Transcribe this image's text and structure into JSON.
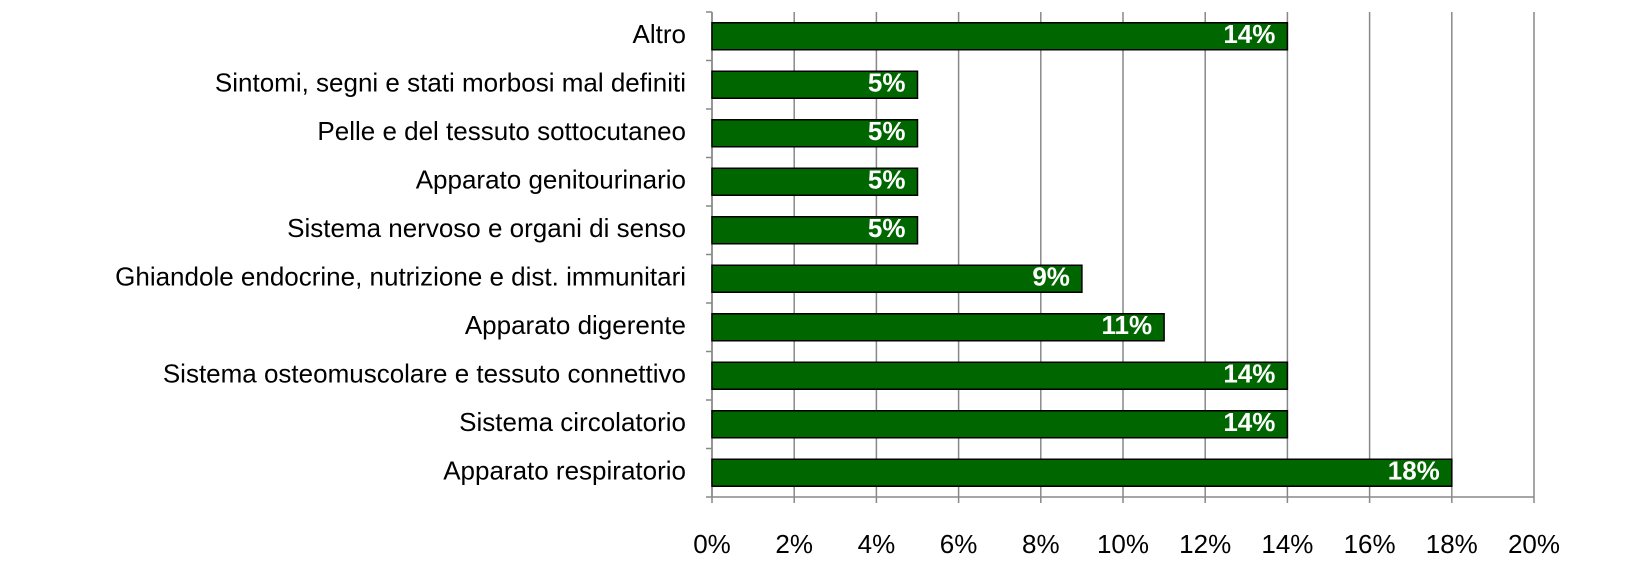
{
  "chart_data": {
    "type": "bar",
    "orientation": "horizontal",
    "categories": [
      "Altro",
      "Sintomi, segni e stati morbosi mal definiti",
      "Pelle e del tessuto sottocutaneo",
      "Apparato genitourinario",
      "Sistema nervoso e organi di senso",
      "Ghiandole endocrine, nutrizione e dist. immunitari",
      "Apparato digerente",
      "Sistema osteomuscolare e tessuto connettivo",
      "Sistema circolatorio",
      "Apparato respiratorio"
    ],
    "values": [
      14,
      5,
      5,
      5,
      5,
      9,
      11,
      14,
      14,
      18
    ],
    "value_labels": [
      "14%",
      "5%",
      "5%",
      "5%",
      "5%",
      "9%",
      "11%",
      "14%",
      "14%",
      "18%"
    ],
    "color": "#006600",
    "xlim": [
      0,
      20
    ],
    "xticks": [
      {
        "value": 0,
        "label": "0%"
      },
      {
        "value": 2,
        "label": "2%"
      },
      {
        "value": 4,
        "label": "4%"
      },
      {
        "value": 6,
        "label": "6%"
      },
      {
        "value": 8,
        "label": "8%"
      },
      {
        "value": 10,
        "label": "10%"
      },
      {
        "value": 12,
        "label": "12%"
      },
      {
        "value": 14,
        "label": "14%"
      },
      {
        "value": 16,
        "label": "16%"
      },
      {
        "value": 18,
        "label": "18%"
      },
      {
        "value": 20,
        "label": "20%"
      }
    ],
    "grid": true
  }
}
